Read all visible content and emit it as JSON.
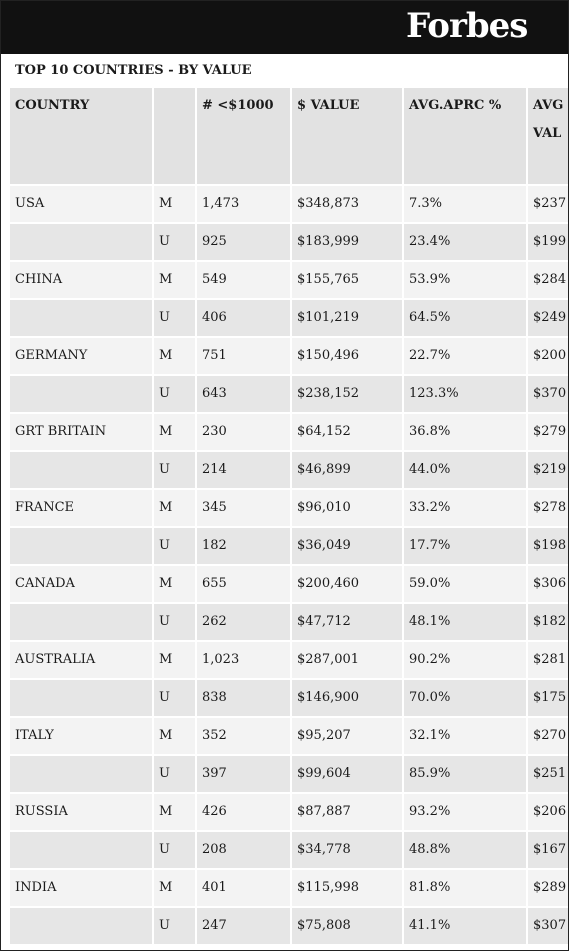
{
  "brand": "Forbes",
  "caption": "TOP 10 COUNTRIES - BY VALUE",
  "columns": [
    "COUNTRY",
    "",
    "#  <$1000",
    "$ VALUE",
    "AVG.APRC %",
    "AVG VAL"
  ],
  "rows": [
    {
      "country": "USA",
      "type": "M",
      "count": "1,473",
      "value": "$348,873",
      "aprc": "7.3%",
      "avg": "$237"
    },
    {
      "country": "",
      "type": "U",
      "count": "925",
      "value": "$183,999",
      "aprc": "23.4%",
      "avg": "$199"
    },
    {
      "country": "CHINA",
      "type": "M",
      "count": "549",
      "value": "$155,765",
      "aprc": "53.9%",
      "avg": "$284"
    },
    {
      "country": "",
      "type": "U",
      "count": "406",
      "value": "$101,219",
      "aprc": "64.5%",
      "avg": "$249"
    },
    {
      "country": "GERMANY",
      "type": "M",
      "count": "751",
      "value": "$150,496",
      "aprc": "22.7%",
      "avg": "$200"
    },
    {
      "country": "",
      "type": "U",
      "count": "643",
      "value": "$238,152",
      "aprc": "123.3%",
      "avg": "$370"
    },
    {
      "country": "GRT BRITAIN",
      "type": "M",
      "count": "230",
      "value": "$64,152",
      "aprc": "36.8%",
      "avg": "$279"
    },
    {
      "country": "",
      "type": "U",
      "count": "214",
      "value": "$46,899",
      "aprc": "44.0%",
      "avg": "$219"
    },
    {
      "country": "FRANCE",
      "type": "M",
      "count": "345",
      "value": "$96,010",
      "aprc": "33.2%",
      "avg": "$278"
    },
    {
      "country": "",
      "type": "U",
      "count": "182",
      "value": "$36,049",
      "aprc": "17.7%",
      "avg": "$198"
    },
    {
      "country": "CANADA",
      "type": "M",
      "count": "655",
      "value": "$200,460",
      "aprc": "59.0%",
      "avg": "$306"
    },
    {
      "country": "",
      "type": "U",
      "count": "262",
      "value": "$47,712",
      "aprc": "48.1%",
      "avg": "$182"
    },
    {
      "country": "AUSTRALIA",
      "type": "M",
      "count": "1,023",
      "value": "$287,001",
      "aprc": "90.2%",
      "avg": "$281"
    },
    {
      "country": "",
      "type": "U",
      "count": "838",
      "value": "$146,900",
      "aprc": "70.0%",
      "avg": "$175"
    },
    {
      "country": "ITALY",
      "type": "M",
      "count": "352",
      "value": "$95,207",
      "aprc": "32.1%",
      "avg": "$270"
    },
    {
      "country": "",
      "type": "U",
      "count": "397",
      "value": "$99,604",
      "aprc": "85.9%",
      "avg": "$251"
    },
    {
      "country": "RUSSIA",
      "type": "M",
      "count": "426",
      "value": "$87,887",
      "aprc": "93.2%",
      "avg": "$206"
    },
    {
      "country": "",
      "type": "U",
      "count": "208",
      "value": "$34,778",
      "aprc": "48.8%",
      "avg": "$167"
    },
    {
      "country": "INDIA",
      "type": "M",
      "count": "401",
      "value": "$115,998",
      "aprc": "81.8%",
      "avg": "$289"
    },
    {
      "country": "",
      "type": "U",
      "count": "247",
      "value": "$75,808",
      "aprc": "41.1%",
      "avg": "$307"
    }
  ]
}
